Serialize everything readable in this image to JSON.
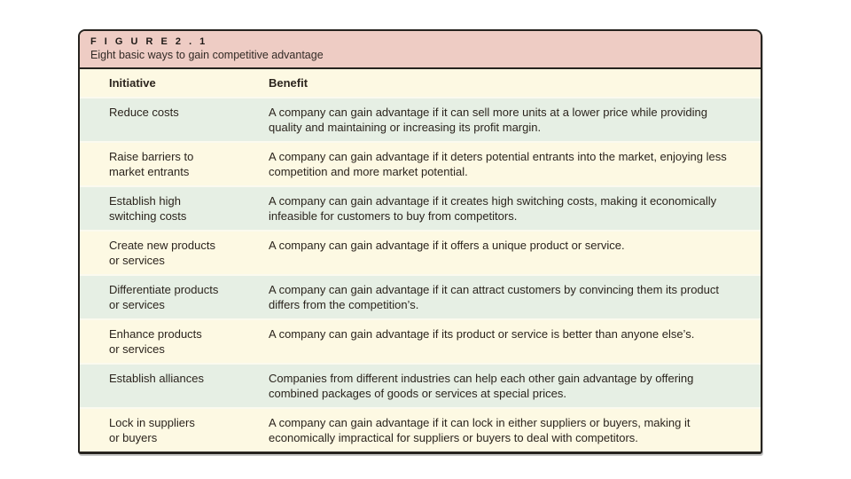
{
  "figure": {
    "label": "F I G U R E   2 . 1",
    "caption": "Eight basic ways to gain competitive advantage"
  },
  "table": {
    "columns": [
      "Initiative",
      "Benefit"
    ],
    "rows": [
      {
        "initiative": "Reduce costs",
        "benefit": "A company can gain advantage if it can sell more units at a lower price while providing quality and maintaining or increasing its profit margin."
      },
      {
        "initiative": "Raise barriers to\nmarket entrants",
        "benefit": "A company can gain advantage if it deters potential entrants into the market, enjoying less competition and more market potential."
      },
      {
        "initiative": "Establish high\nswitching costs",
        "benefit": "A company can gain advantage if it creates high switching costs, making it economically infeasible for customers to buy from competitors."
      },
      {
        "initiative": "Create new products\nor services",
        "benefit": "A company can gain advantage if it offers a unique product or service."
      },
      {
        "initiative": "Differentiate products\nor services",
        "benefit": "A company can gain advantage if it can attract customers by convincing them its product differs from the competition’s."
      },
      {
        "initiative": "Enhance products\nor services",
        "benefit": "A company can gain advantage if its product or service is better than anyone else’s."
      },
      {
        "initiative": "Establish alliances",
        "benefit": "Companies from different industries can help each other gain advantage by offering combined packages of goods or services at special prices."
      },
      {
        "initiative": "Lock in suppliers\nor buyers",
        "benefit": "A company can gain advantage if it can lock in either suppliers or buyers, making it economically impractical for suppliers or buyers to deal with competitors."
      }
    ]
  },
  "colors": {
    "header_pink": "#eeccc4",
    "row_green": "#e6efe4",
    "row_cream": "#fdf9e3",
    "border_dark": "#26231f",
    "text_dark": "#2b241d",
    "background": "#ffffff"
  }
}
